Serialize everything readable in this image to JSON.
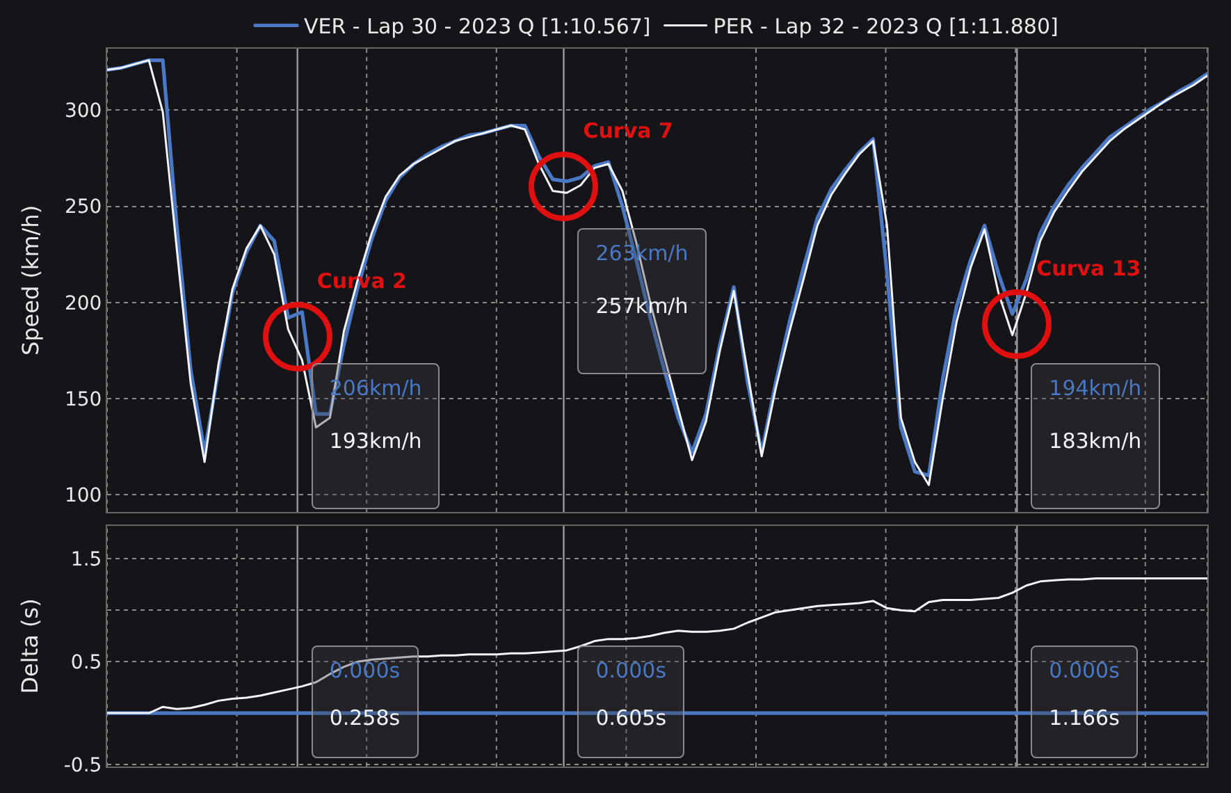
{
  "chart_data": [
    {
      "type": "line",
      "ylabel": "Speed (km/h)",
      "categories": [
        null,
        null,
        null,
        null,
        null,
        null,
        null,
        null,
        null,
        null,
        null,
        null,
        null,
        null,
        null,
        null,
        null,
        null,
        null,
        null,
        null,
        null,
        null,
        null,
        null,
        null,
        null,
        null,
        null,
        null,
        null,
        null,
        null,
        null,
        null,
        null,
        null,
        null,
        null,
        null,
        null,
        null,
        null,
        null,
        null,
        null,
        null,
        null,
        null,
        null,
        null,
        null,
        null,
        null,
        null,
        null,
        null,
        null,
        null,
        null,
        null,
        null,
        null,
        null,
        null,
        null,
        null,
        null,
        null,
        null,
        null,
        null,
        null,
        null,
        null,
        null,
        null,
        null,
        null,
        null
      ],
      "series": [
        {
          "name": "VER - Lap 30 - 2023 Q [1:10.567]",
          "color": "#4a78c4",
          "values": [
            321,
            322,
            324,
            326,
            326,
            240,
            165,
            122,
            165,
            205,
            226,
            240,
            232,
            192,
            195,
            142,
            142,
            178,
            208,
            233,
            253,
            265,
            272,
            277,
            281,
            284,
            287,
            288,
            290,
            292,
            292,
            276,
            264,
            263,
            265,
            271,
            273,
            250,
            222,
            192,
            165,
            140,
            122,
            142,
            178,
            208,
            158,
            122,
            158,
            190,
            218,
            244,
            259,
            269,
            278,
            285,
            215,
            135,
            112,
            110,
            160,
            198,
            222,
            240,
            215,
            194,
            212,
            236,
            250,
            261,
            270,
            278,
            286,
            291,
            296,
            301,
            305,
            310,
            314,
            319
          ]
        },
        {
          "name": "PER - Lap 32 - 2023 Q [1:11.880]",
          "color": "#f2f4fa",
          "values": [
            321,
            322,
            324,
            326,
            299,
            228,
            158,
            117,
            168,
            207,
            228,
            240,
            225,
            186,
            170,
            135,
            140,
            185,
            212,
            236,
            255,
            266,
            272,
            276,
            280,
            284,
            286,
            288,
            290,
            292,
            290,
            272,
            258,
            257,
            261,
            270,
            272,
            258,
            231,
            200,
            172,
            145,
            118,
            138,
            175,
            206,
            163,
            120,
            155,
            185,
            212,
            240,
            256,
            267,
            277,
            284,
            240,
            140,
            117,
            105,
            150,
            190,
            218,
            238,
            205,
            183,
            205,
            232,
            247,
            258,
            268,
            276,
            284,
            290,
            295,
            300,
            305,
            309,
            313,
            318
          ]
        }
      ],
      "ylim": [
        91,
        332
      ],
      "yticks": [
        100,
        150,
        200,
        250,
        300
      ],
      "grid": true,
      "legend": "top",
      "tick_labels": "y",
      "annotations": [
        "Curva 2",
        "206km/h",
        "193km/h",
        "Curva 7",
        "263km/h",
        "257km/h",
        "Curva 13",
        "194km/h",
        "183km/h"
      ]
    },
    {
      "type": "line",
      "ylabel": "Delta (s)",
      "categories": [
        null,
        null,
        null,
        null,
        null,
        null,
        null,
        null,
        null,
        null,
        null,
        null,
        null,
        null,
        null,
        null,
        null,
        null,
        null,
        null,
        null,
        null,
        null,
        null,
        null,
        null,
        null,
        null,
        null,
        null,
        null,
        null,
        null,
        null,
        null,
        null,
        null,
        null,
        null,
        null,
        null,
        null,
        null,
        null,
        null,
        null,
        null,
        null,
        null,
        null,
        null,
        null,
        null,
        null,
        null,
        null,
        null,
        null,
        null,
        null,
        null,
        null,
        null,
        null,
        null,
        null,
        null,
        null,
        null,
        null,
        null,
        null,
        null,
        null,
        null,
        null,
        null,
        null,
        null,
        null
      ],
      "series": [
        {
          "color": "#4a78c4",
          "values": [
            0,
            0,
            0,
            0,
            0,
            0,
            0,
            0,
            0,
            0,
            0,
            0,
            0,
            0,
            0,
            0,
            0,
            0,
            0,
            0,
            0,
            0,
            0,
            0,
            0,
            0,
            0,
            0,
            0,
            0,
            0,
            0,
            0,
            0,
            0,
            0,
            0,
            0,
            0,
            0,
            0,
            0,
            0,
            0,
            0,
            0,
            0,
            0,
            0,
            0,
            0,
            0,
            0,
            0,
            0,
            0,
            0,
            0,
            0,
            0,
            0,
            0,
            0,
            0,
            0,
            0,
            0,
            0,
            0,
            0,
            0,
            0,
            0,
            0,
            0,
            0,
            0,
            0,
            0,
            0
          ]
        },
        {
          "color": "#f2f4fa",
          "values": [
            0,
            0,
            0,
            0,
            0.06,
            0.04,
            0.05,
            0.08,
            0.12,
            0.14,
            0.15,
            0.17,
            0.2,
            0.23,
            0.26,
            0.3,
            0.38,
            0.45,
            0.5,
            0.52,
            0.53,
            0.54,
            0.55,
            0.55,
            0.56,
            0.56,
            0.57,
            0.57,
            0.57,
            0.58,
            0.58,
            0.59,
            0.6,
            0.61,
            0.65,
            0.7,
            0.72,
            0.72,
            0.73,
            0.75,
            0.78,
            0.8,
            0.79,
            0.79,
            0.8,
            0.82,
            0.88,
            0.93,
            0.98,
            1.0,
            1.02,
            1.04,
            1.05,
            1.06,
            1.07,
            1.09,
            1.02,
            1.0,
            0.99,
            1.08,
            1.1,
            1.1,
            1.1,
            1.11,
            1.12,
            1.17,
            1.24,
            1.28,
            1.29,
            1.3,
            1.3,
            1.31,
            1.31,
            1.31,
            1.31,
            1.31,
            1.31,
            1.31,
            1.31,
            1.31
          ]
        }
      ],
      "ylim": [
        -0.52,
        1.82
      ],
      "yticks": [
        -0.5,
        0.5,
        {
          "value": 1,
          "label": null
        },
        1.5
      ],
      "grid": true,
      "tick_labels": "y",
      "annotations": [
        "0.000s",
        "0.258s",
        "0.000s",
        "0.605s",
        "0.000s",
        "1.166s"
      ]
    }
  ]
}
